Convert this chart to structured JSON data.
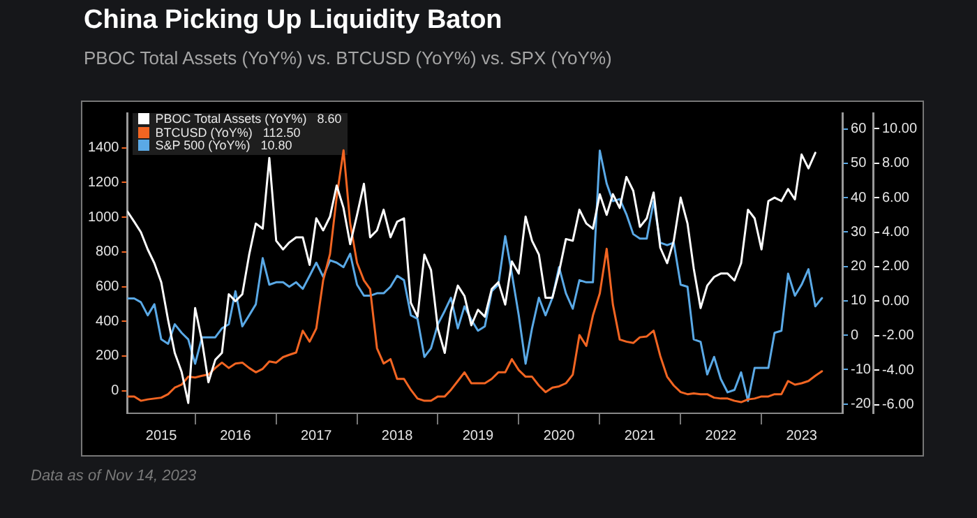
{
  "chart_data": {
    "type": "line",
    "title": "China Picking Up Liquidity Baton",
    "subtitle": "PBOC Total Assets (YoY%) vs. BTCUSD (YoY%) vs. SPX (YoY%)",
    "annotations": [
      "Data as of Nov 14, 2023"
    ],
    "legend": "top left",
    "x": [
      "2015-03",
      "2015-04",
      "2015-05",
      "2015-06",
      "2015-07",
      "2015-08",
      "2015-09",
      "2015-10",
      "2015-11",
      "2015-12",
      "2016-01",
      "2016-02",
      "2016-03",
      "2016-04",
      "2016-05",
      "2016-06",
      "2016-07",
      "2016-08",
      "2016-09",
      "2016-10",
      "2016-11",
      "2016-12",
      "2017-01",
      "2017-02",
      "2017-03",
      "2017-04",
      "2017-05",
      "2017-06",
      "2017-07",
      "2017-08",
      "2017-09",
      "2017-10",
      "2017-11",
      "2017-12",
      "2018-01",
      "2018-02",
      "2018-03",
      "2018-04",
      "2018-05",
      "2018-06",
      "2018-07",
      "2018-08",
      "2018-09",
      "2018-10",
      "2018-11",
      "2018-12",
      "2019-01",
      "2019-02",
      "2019-03",
      "2019-04",
      "2019-05",
      "2019-06",
      "2019-07",
      "2019-08",
      "2019-09",
      "2019-10",
      "2019-11",
      "2019-12",
      "2020-01",
      "2020-02",
      "2020-03",
      "2020-04",
      "2020-05",
      "2020-06",
      "2020-07",
      "2020-08",
      "2020-09",
      "2020-10",
      "2020-11",
      "2020-12",
      "2021-01",
      "2021-02",
      "2021-03",
      "2021-04",
      "2021-05",
      "2021-06",
      "2021-07",
      "2021-08",
      "2021-09",
      "2021-10",
      "2021-11",
      "2021-12",
      "2022-01",
      "2022-02",
      "2022-03",
      "2022-04",
      "2022-05",
      "2022-06",
      "2022-07",
      "2022-08",
      "2022-09",
      "2022-10",
      "2022-11",
      "2022-12",
      "2023-01",
      "2023-02",
      "2023-03",
      "2023-04",
      "2023-05",
      "2023-06",
      "2023-07",
      "2023-08",
      "2023-09",
      "2023-10"
    ],
    "xlim": [
      "2015-03",
      "2024-01"
    ],
    "xticks": [
      {
        "value": "2015-08",
        "label": "2015"
      },
      {
        "value": "2016-01",
        "label": null
      },
      {
        "value": "2016-07",
        "label": "2016"
      },
      {
        "value": "2017-01",
        "label": null
      },
      {
        "value": "2017-07",
        "label": "2017"
      },
      {
        "value": "2018-01",
        "label": null
      },
      {
        "value": "2018-07",
        "label": "2018"
      },
      {
        "value": "2019-01",
        "label": null
      },
      {
        "value": "2019-07",
        "label": "2019"
      },
      {
        "value": "2020-01",
        "label": null
      },
      {
        "value": "2020-07",
        "label": "2020"
      },
      {
        "value": "2021-01",
        "label": null
      },
      {
        "value": "2021-07",
        "label": "2021"
      },
      {
        "value": "2022-01",
        "label": null
      },
      {
        "value": "2022-07",
        "label": "2022"
      },
      {
        "value": "2023-01",
        "label": null
      },
      {
        "value": "2023-07",
        "label": "2023"
      }
    ],
    "ylim": [
      -130,
      1600
    ],
    "yticks": [
      0,
      200,
      400,
      600,
      800,
      1000,
      1200,
      1400
    ],
    "y2lim": [
      -22.7,
      64.6
    ],
    "y2ticks": [
      -20,
      -10,
      0,
      10,
      20,
      30,
      40,
      50,
      60
    ],
    "y3lim": [
      -6.5,
      10.9
    ],
    "y3ticks": [
      {
        "value": -6,
        "label": "-6.00"
      },
      {
        "value": -4,
        "label": "-4.00"
      },
      {
        "value": -2,
        "label": "-2.00"
      },
      {
        "value": 0,
        "label": "0.00"
      },
      {
        "value": 2,
        "label": "2.00"
      },
      {
        "value": 4,
        "label": "4.00"
      },
      {
        "value": 6,
        "label": "6.00"
      },
      {
        "value": 8,
        "label": "8.00"
      },
      {
        "value": 10,
        "label": "10.00"
      }
    ],
    "series": [
      {
        "name": "PBOC Total Assets (YoY%)   8.60",
        "color": "#ffffff",
        "axis": "y3",
        "values": [
          5.2,
          4.6,
          4.0,
          3.0,
          2.2,
          1.1,
          -1.1,
          -3.0,
          -4.1,
          -5.9,
          -0.4,
          -2.3,
          -4.7,
          -3.4,
          -3.0,
          0.4,
          0.0,
          0.4,
          2.7,
          4.5,
          4.2,
          8.3,
          3.5,
          3.0,
          3.4,
          3.7,
          3.7,
          2.1,
          4.8,
          4.1,
          4.9,
          6.7,
          5.4,
          3.3,
          5.0,
          6.8,
          3.7,
          4.1,
          5.3,
          3.7,
          4.6,
          4.8,
          -0.1,
          -0.9,
          2.7,
          1.8,
          -1.6,
          -3.0,
          -0.6,
          0.9,
          0.3,
          -1.4,
          -0.5,
          -0.9,
          0.7,
          1.1,
          -0.2,
          2.3,
          1.6,
          4.9,
          3.5,
          2.7,
          0.2,
          0.2,
          1.7,
          3.6,
          3.5,
          5.3,
          4.5,
          4.2,
          6.2,
          5.0,
          6.2,
          5.4,
          7.2,
          6.4,
          4.3,
          4.8,
          6.3,
          3.1,
          2.2,
          3.5,
          6.0,
          4.5,
          1.9,
          -0.4,
          0.9,
          1.4,
          1.6,
          1.6,
          1.2,
          2.2,
          5.3,
          4.8,
          3.0,
          5.8,
          6.0,
          5.8,
          6.5,
          5.9,
          8.5,
          7.7,
          8.6,
          null
        ]
      },
      {
        "name": "BTCUSD (YoY%)   112.50",
        "color": "#f26522",
        "axis": "y",
        "values": [
          -33,
          -33,
          -58,
          -50,
          -45,
          -40,
          -20,
          18,
          35,
          81,
          76,
          86,
          93,
          131,
          162,
          131,
          157,
          162,
          131,
          106,
          126,
          169,
          162,
          194,
          207,
          220,
          346,
          283,
          359,
          636,
          788,
          1116,
          1386,
          965,
          737,
          636,
          586,
          245,
          157,
          182,
          68,
          68,
          5,
          -45,
          -58,
          -58,
          -33,
          -33,
          5,
          56,
          106,
          43,
          43,
          43,
          68,
          106,
          106,
          182,
          119,
          81,
          81,
          30,
          -8,
          18,
          25,
          43,
          93,
          321,
          258,
          434,
          561,
          818,
          497,
          295,
          283,
          275,
          308,
          313,
          346,
          200,
          81,
          30,
          -8,
          -20,
          -15,
          -20,
          -20,
          -40,
          -45,
          -45,
          -58,
          -66,
          -50,
          -45,
          -33,
          -33,
          -20,
          -20,
          56,
          35,
          43,
          56,
          86,
          112.5
        ]
      },
      {
        "name": "S&P 500 (YoY%)   10.80",
        "color": "#5aa9e6",
        "axis": "y2",
        "values": [
          10.7,
          10.7,
          9.6,
          5.8,
          9.0,
          -1.2,
          -2.5,
          3.2,
          0.7,
          -1.2,
          -8.3,
          -0.6,
          -0.6,
          -0.6,
          2.0,
          3.2,
          12.8,
          2.6,
          5.8,
          9.0,
          22.4,
          14.7,
          15.4,
          15.4,
          14.1,
          15.4,
          13.5,
          17.3,
          21.1,
          17.0,
          21.8,
          21.1,
          19.8,
          23.7,
          14.7,
          11.5,
          11.5,
          12.2,
          12.2,
          14.1,
          17.3,
          16.0,
          5.8,
          4.8,
          -6.3,
          -3.8,
          3.2,
          7.1,
          10.9,
          2.0,
          8.4,
          4.5,
          1.3,
          2.6,
          12.8,
          14.7,
          28.8,
          17.9,
          5.8,
          -8.3,
          2.0,
          10.9,
          5.8,
          10.9,
          19.8,
          12.2,
          7.7,
          16.0,
          15.4,
          15.4,
          53.7,
          44.1,
          39.0,
          39.6,
          35.2,
          29.4,
          28.1,
          28.1,
          39.0,
          26.9,
          26.2,
          26.9,
          14.7,
          14.1,
          -1.2,
          -1.9,
          -11.4,
          -6.3,
          -12.7,
          -16.6,
          -15.9,
          -10.8,
          -19.1,
          -9.5,
          -9.5,
          -9.5,
          0.7,
          1.3,
          17.9,
          11.5,
          14.7,
          19.2,
          8.4,
          10.8
        ]
      }
    ]
  }
}
